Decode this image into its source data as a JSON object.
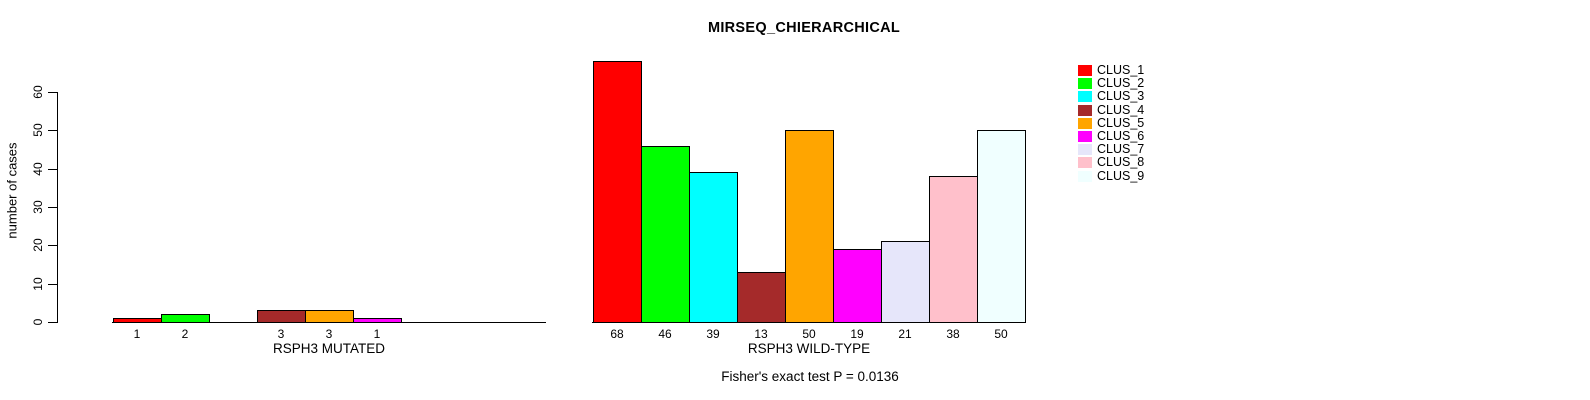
{
  "chart_data": {
    "type": "bar",
    "title": "MIRSEQ_CHIERARCHICAL",
    "ylabel": "number of cases",
    "ylim": [
      0,
      60
    ],
    "yticks": [
      0,
      10,
      20,
      30,
      40,
      50,
      60
    ],
    "grid": false,
    "legend_position": "top-right",
    "categories": [
      "CLUS_1",
      "CLUS_2",
      "CLUS_3",
      "CLUS_4",
      "CLUS_5",
      "CLUS_6",
      "CLUS_7",
      "CLUS_8",
      "CLUS_9"
    ],
    "colors": [
      "#FF0000",
      "#00FF00",
      "#00FFFF",
      "#A52A2A",
      "#FFA500",
      "#FF00FF",
      "#E6E6FA",
      "#FFC0CB",
      "#F0FFFF"
    ],
    "series": [
      {
        "name": "RSPH3 MUTATED",
        "values": [
          1,
          2,
          0,
          3,
          3,
          1,
          0,
          0,
          0
        ]
      },
      {
        "name": "RSPH3 WILD-TYPE",
        "values": [
          68,
          46,
          39,
          13,
          50,
          19,
          21,
          38,
          50
        ]
      }
    ],
    "bar_value_labels_shown": true,
    "annotation": "Fisher's exact test P = 0.0136"
  }
}
